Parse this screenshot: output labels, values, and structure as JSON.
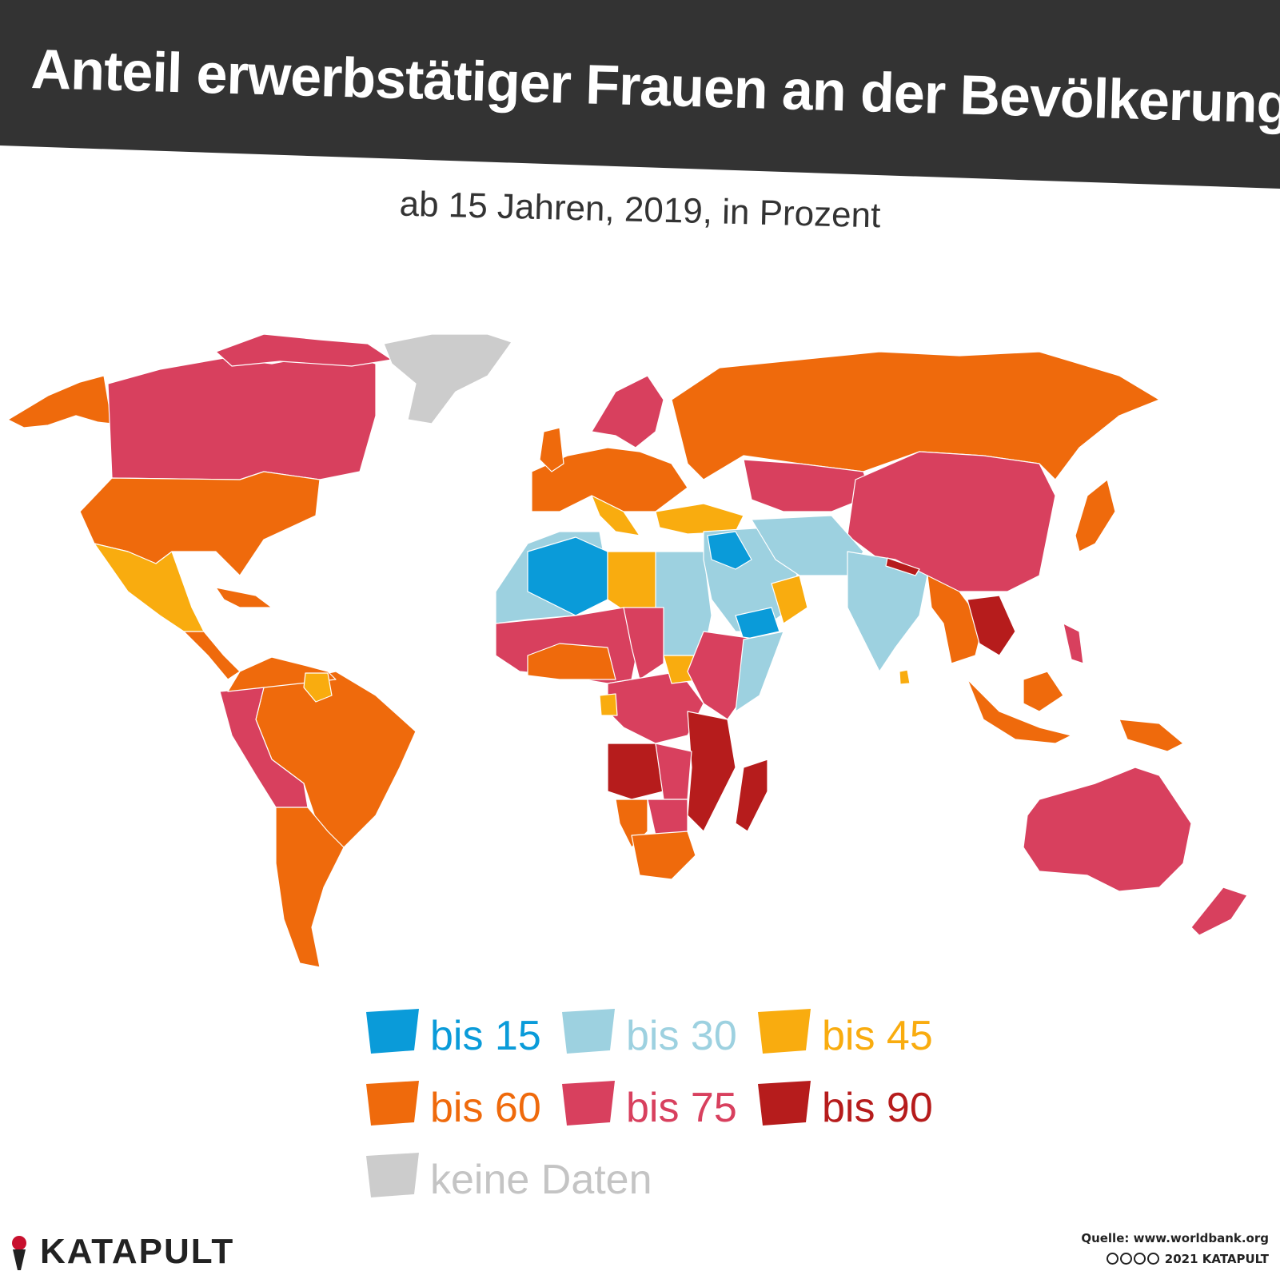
{
  "title": "Anteil erwerbstätiger Frauen an der Bevölkerung",
  "subtitle": "ab 15 Jahren, 2019, in Prozent",
  "colors": {
    "bis15": "#0a9bd9",
    "bis30": "#9dd1e0",
    "bis45": "#f9ac0f",
    "bis60": "#ef6a0c",
    "bis75": "#d8405e",
    "bis90": "#b61c1c",
    "keine_daten": "#cccccc",
    "header": "#333333"
  },
  "legend": {
    "items": [
      {
        "label": "bis 15",
        "key": "bis15"
      },
      {
        "label": "bis 30",
        "key": "bis30"
      },
      {
        "label": "bis 45",
        "key": "bis45"
      },
      {
        "label": "bis 60",
        "key": "bis60"
      },
      {
        "label": "bis 75",
        "key": "bis75"
      },
      {
        "label": "bis 90",
        "key": "bis90"
      },
      {
        "label": "keine Daten",
        "key": "keine_daten"
      }
    ]
  },
  "logo": {
    "text": "KATAPULT"
  },
  "source": "Quelle: www.worldbank.org",
  "copyright": "2021 KATAPULT"
}
